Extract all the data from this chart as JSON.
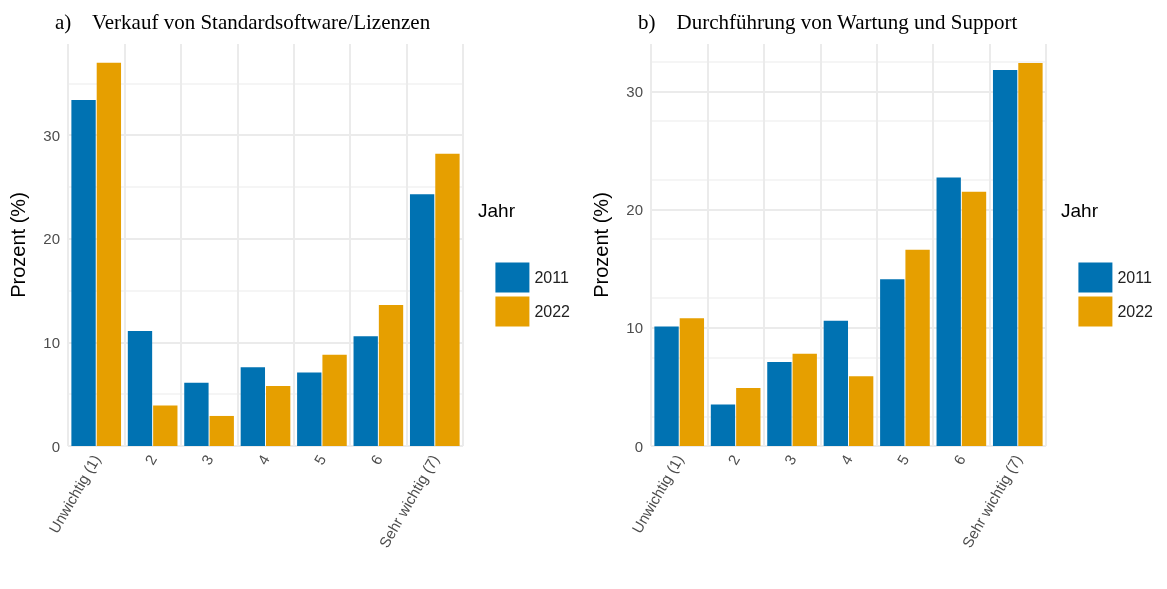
{
  "chart_data": [
    {
      "type": "bar",
      "title": "a)    Verkauf von Standardsoftware/Lizenzen",
      "ylabel": "Prozent (%)",
      "legend_title": "Jahr",
      "categories": [
        "Unwichtig (1)",
        "2",
        "3",
        "4",
        "5",
        "6",
        "Sehr wichtig (7)"
      ],
      "series": [
        {
          "name": "2011",
          "color": "#0072b2",
          "values": [
            33.4,
            11.1,
            6.1,
            7.6,
            7.1,
            10.6,
            24.3
          ]
        },
        {
          "name": "2022",
          "color": "#e69f00",
          "values": [
            37.0,
            3.9,
            2.9,
            5.8,
            8.8,
            13.6,
            28.2
          ]
        }
      ],
      "ylim": [
        0,
        38.8
      ],
      "yticks": [
        0,
        10,
        20,
        30
      ],
      "grid": true,
      "legend": "right"
    },
    {
      "type": "bar",
      "title": "b)    Durchführung von Wartung und Support",
      "ylabel": "Prozent (%)",
      "legend_title": "Jahr",
      "categories": [
        "Unwichtig (1)",
        "2",
        "3",
        "4",
        "5",
        "6",
        "Sehr wichtig (7)"
      ],
      "series": [
        {
          "name": "2011",
          "color": "#0072b2",
          "values": [
            10.1,
            3.5,
            7.1,
            10.6,
            14.1,
            22.7,
            31.8
          ]
        },
        {
          "name": "2022",
          "color": "#e69f00",
          "values": [
            10.8,
            4.9,
            7.8,
            5.9,
            16.6,
            21.5,
            32.4
          ]
        }
      ],
      "ylim": [
        0,
        34.0
      ],
      "yticks": [
        0,
        10,
        20,
        30
      ],
      "grid": true,
      "legend": "right"
    }
  ]
}
